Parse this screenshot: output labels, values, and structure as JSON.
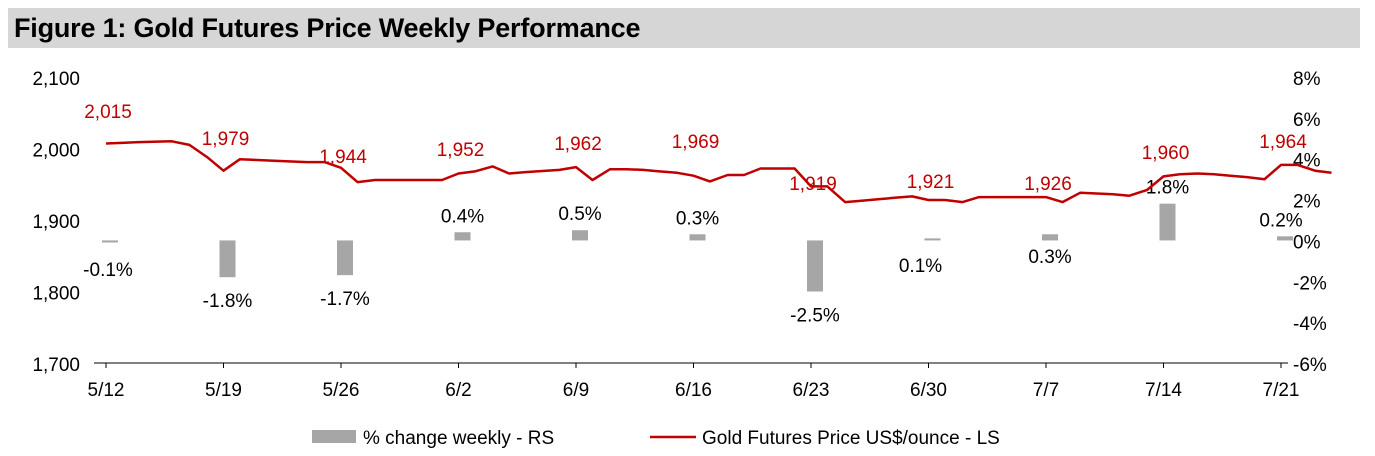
{
  "figure": {
    "title": "Figure 1: Gold Futures Price Weekly Performance"
  },
  "colors": {
    "line": "#c00000",
    "bar": "#a6a6a6",
    "text": "#000000",
    "title_bg": "#d6d6d6"
  },
  "chart_data": {
    "type": "bar+line",
    "title": "Figure 1: Gold Futures Price Weekly Performance",
    "x_tick_labels": [
      "5/12",
      "5/19",
      "5/26",
      "6/2",
      "6/9",
      "6/16",
      "6/23",
      "6/30",
      "7/7",
      "7/14",
      "7/21"
    ],
    "left_axis": {
      "label": "Gold Futures Price US$/ounce",
      "ylim": [
        1700,
        2100
      ],
      "ticks": [
        1700,
        1800,
        1900,
        2000,
        2100
      ],
      "tick_labels": [
        "1,700",
        "1,800",
        "1,900",
        "2,000",
        "2,100"
      ]
    },
    "right_axis": {
      "label": "% change weekly",
      "ylim": [
        -6,
        8
      ],
      "ticks": [
        -6,
        -4,
        -2,
        0,
        2,
        4,
        6,
        8
      ],
      "tick_labels": [
        "-6%",
        "-4%",
        "-2%",
        "0%",
        "2%",
        "4%",
        "6%",
        "8%"
      ]
    },
    "bars": {
      "name": "% change weekly - RS",
      "values": [
        -0.1,
        -1.8,
        -1.7,
        0.4,
        0.5,
        0.3,
        -2.5,
        0.1,
        0.3,
        1.8,
        0.2
      ],
      "labels": [
        "-0.1%",
        "-1.8%",
        "-1.7%",
        "0.4%",
        "0.5%",
        "0.3%",
        "-2.5%",
        "0.1%",
        "0.3%",
        "1.8%",
        "0.2%"
      ]
    },
    "line": {
      "name": "Gold Futures Price US$/ounce - LS",
      "weekly_labels": [
        "2,015",
        "1,979",
        "1,944",
        "1,952",
        "1,962",
        "1,969",
        "1,919",
        "1,921",
        "1,926",
        "1,960",
        "1,964"
      ],
      "points": [
        [
          0.0,
          2007
        ],
        [
          0.28,
          2009
        ],
        [
          0.56,
          2010
        ],
        [
          0.71,
          2005
        ],
        [
          0.86,
          1988
        ],
        [
          1.0,
          1969
        ],
        [
          1.14,
          1985
        ],
        [
          1.43,
          1983
        ],
        [
          1.71,
          1981
        ],
        [
          1.86,
          1981
        ],
        [
          2.0,
          1973
        ],
        [
          2.14,
          1953
        ],
        [
          2.29,
          1956
        ],
        [
          2.57,
          1956
        ],
        [
          2.86,
          1956
        ],
        [
          3.0,
          1965
        ],
        [
          3.14,
          1968
        ],
        [
          3.29,
          1975
        ],
        [
          3.43,
          1965
        ],
        [
          3.57,
          1967
        ],
        [
          3.86,
          1970
        ],
        [
          4.0,
          1974
        ],
        [
          4.14,
          1956
        ],
        [
          4.29,
          1971
        ],
        [
          4.43,
          1971
        ],
        [
          4.57,
          1970
        ],
        [
          4.71,
          1968
        ],
        [
          4.86,
          1966
        ],
        [
          5.0,
          1962
        ],
        [
          5.14,
          1954
        ],
        [
          5.29,
          1963
        ],
        [
          5.43,
          1963
        ],
        [
          5.57,
          1972
        ],
        [
          5.86,
          1972
        ],
        [
          6.0,
          1947
        ],
        [
          6.14,
          1947
        ],
        [
          6.29,
          1925
        ],
        [
          6.43,
          1927
        ],
        [
          6.57,
          1929
        ],
        [
          6.71,
          1931
        ],
        [
          6.86,
          1933
        ],
        [
          7.0,
          1928
        ],
        [
          7.14,
          1928
        ],
        [
          7.29,
          1925
        ],
        [
          7.43,
          1932
        ],
        [
          7.57,
          1932
        ],
        [
          7.71,
          1932
        ],
        [
          7.86,
          1932
        ],
        [
          8.0,
          1932
        ],
        [
          8.14,
          1925
        ],
        [
          8.29,
          1938
        ],
        [
          8.43,
          1937
        ],
        [
          8.57,
          1936
        ],
        [
          8.71,
          1934
        ],
        [
          8.86,
          1942
        ],
        [
          9.0,
          1961
        ],
        [
          9.14,
          1964
        ],
        [
          9.29,
          1965
        ],
        [
          9.43,
          1964
        ],
        [
          9.57,
          1962
        ],
        [
          9.71,
          1960
        ],
        [
          9.86,
          1957
        ],
        [
          10.0,
          1977
        ],
        [
          10.14,
          1977
        ],
        [
          10.29,
          1969
        ],
        [
          10.43,
          1966
        ]
      ]
    },
    "legend": {
      "position": "bottom-center",
      "entries": [
        "% change weekly - RS",
        "Gold Futures Price US$/ounce - LS"
      ]
    }
  }
}
